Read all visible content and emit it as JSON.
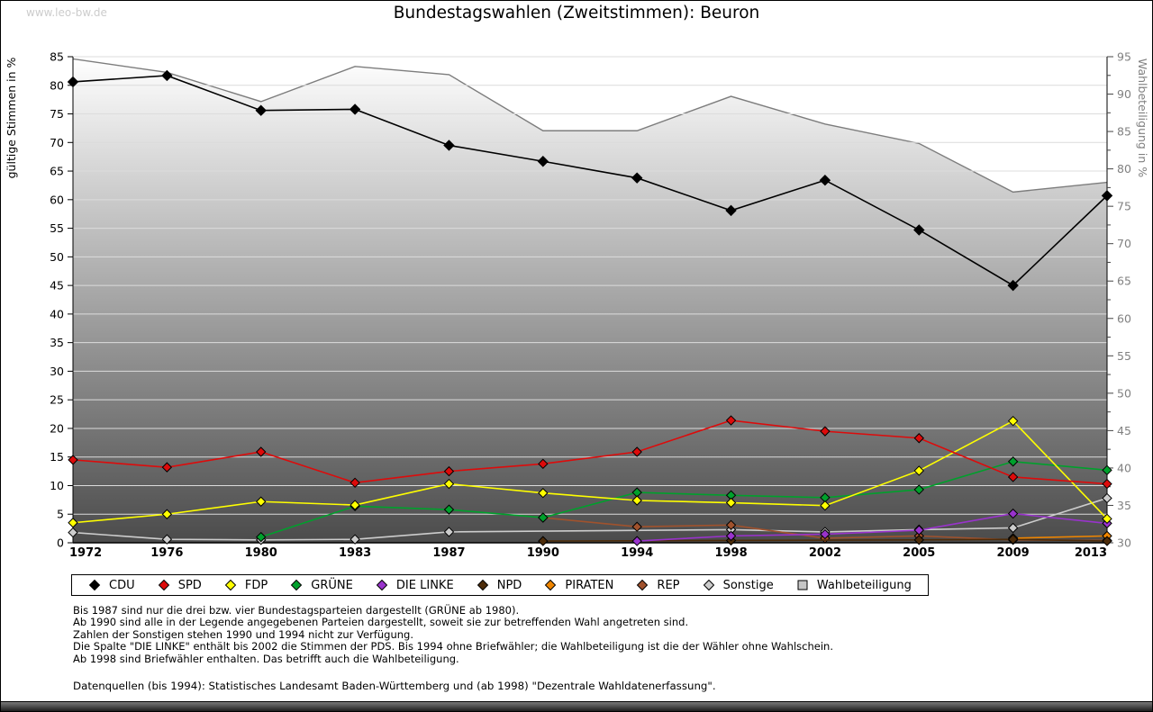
{
  "page": {
    "watermark": "www.leo-bw.de",
    "title": "Bundestagswahlen (Zweitstimmen): Beuron"
  },
  "chart_data": {
    "type": "line",
    "title": "Bundestagswahlen (Zweitstimmen): Beuron",
    "x": [
      1972,
      1976,
      1980,
      1983,
      1987,
      1990,
      1994,
      1998,
      2002,
      2005,
      2009,
      2013
    ],
    "left_axis": {
      "label": "gültige Stimmen in %",
      "min": 0,
      "max": 85,
      "tick_step": 5
    },
    "right_axis": {
      "label": "Wahlbeteiligung in %",
      "min": 30,
      "max": 95,
      "tick_step": 5,
      "minor_step": 2.5
    },
    "grid": true,
    "legend_position": "bottom",
    "series": [
      {
        "name": "CDU",
        "color": "#000000",
        "axis": "left",
        "marker": "diamond",
        "values": [
          80.6,
          81.7,
          75.6,
          75.8,
          69.5,
          66.7,
          63.8,
          58.1,
          63.4,
          54.7,
          45.0,
          60.7
        ]
      },
      {
        "name": "SPD",
        "color": "#dd0b0b",
        "axis": "left",
        "marker": "diamond",
        "values": [
          14.5,
          13.2,
          15.9,
          10.5,
          12.5,
          13.8,
          15.9,
          21.4,
          19.5,
          18.3,
          11.5,
          10.3
        ]
      },
      {
        "name": "FDP",
        "color": "#ffff00",
        "axis": "left",
        "marker": "diamond",
        "values": [
          3.5,
          5.0,
          7.2,
          6.6,
          10.3,
          8.7,
          7.4,
          7.0,
          6.5,
          12.6,
          21.3,
          4.2
        ]
      },
      {
        "name": "GRÜNE",
        "color": "#00a02c",
        "axis": "left",
        "marker": "diamond",
        "values": [
          null,
          null,
          1.0,
          6.4,
          5.8,
          4.4,
          8.8,
          8.3,
          7.9,
          9.3,
          14.2,
          12.7
        ]
      },
      {
        "name": "DIE LINKE",
        "color": "#9933cc",
        "axis": "left",
        "marker": "diamond",
        "values": [
          null,
          null,
          null,
          null,
          null,
          null,
          0.3,
          1.2,
          1.5,
          2.2,
          5.1,
          3.4
        ]
      },
      {
        "name": "NPD",
        "color": "#4d2c0a",
        "axis": "left",
        "marker": "diamond",
        "values": [
          null,
          null,
          null,
          null,
          null,
          0.3,
          null,
          0.4,
          null,
          0.5,
          0.6,
          0.3
        ]
      },
      {
        "name": "PIRATEN",
        "color": "#ef8500",
        "axis": "left",
        "marker": "diamond",
        "values": [
          null,
          null,
          null,
          null,
          null,
          null,
          null,
          null,
          null,
          null,
          0.8,
          1.2
        ]
      },
      {
        "name": "REP",
        "color": "#a0522d",
        "axis": "left",
        "marker": "diamond",
        "values": [
          null,
          null,
          null,
          null,
          null,
          4.4,
          2.8,
          3.1,
          0.8,
          1.2,
          0.5,
          0.4
        ]
      },
      {
        "name": "Sonstige",
        "color": "#cccccc",
        "axis": "left",
        "marker": "diamond",
        "values": [
          1.8,
          0.6,
          0.5,
          0.6,
          1.9,
          null,
          null,
          2.3,
          1.9,
          2.3,
          2.6,
          7.8
        ]
      },
      {
        "name": "Wahlbeteiligung",
        "color": "#7d7d7d",
        "axis": "right",
        "marker": "square",
        "area": true,
        "area_gradient": [
          "#ffffff",
          "#4b4b4b"
        ],
        "values": [
          94.7,
          92.9,
          89.0,
          93.7,
          92.6,
          85.1,
          85.1,
          89.7,
          86.0,
          83.4,
          76.9,
          78.2
        ]
      }
    ]
  },
  "footnotes": {
    "lines": [
      "Bis 1987 sind nur die drei bzw. vier Bundestagsparteien dargestellt (GRÜNE ab 1980).",
      "Ab 1990 sind alle in der Legende angegebenen Parteien dargestellt, soweit sie zur betreffenden Wahl angetreten sind.",
      "Zahlen der Sonstigen stehen 1990 und 1994 nicht zur Verfügung.",
      "Die Spalte \"DIE LINKE\" enthält bis 2002 die Stimmen der PDS. Bis 1994 ohne Briefwähler; die Wahlbeteiligung ist die der Wähler ohne Wahlschein.",
      "Ab 1998 sind Briefwähler enthalten. Das betrifft auch die Wahlbeteiligung."
    ],
    "source": "Datenquellen (bis 1994): Statistisches Landesamt Baden-Württemberg und (ab 1998) \"Dezentrale Wahldatenerfassung\"."
  }
}
